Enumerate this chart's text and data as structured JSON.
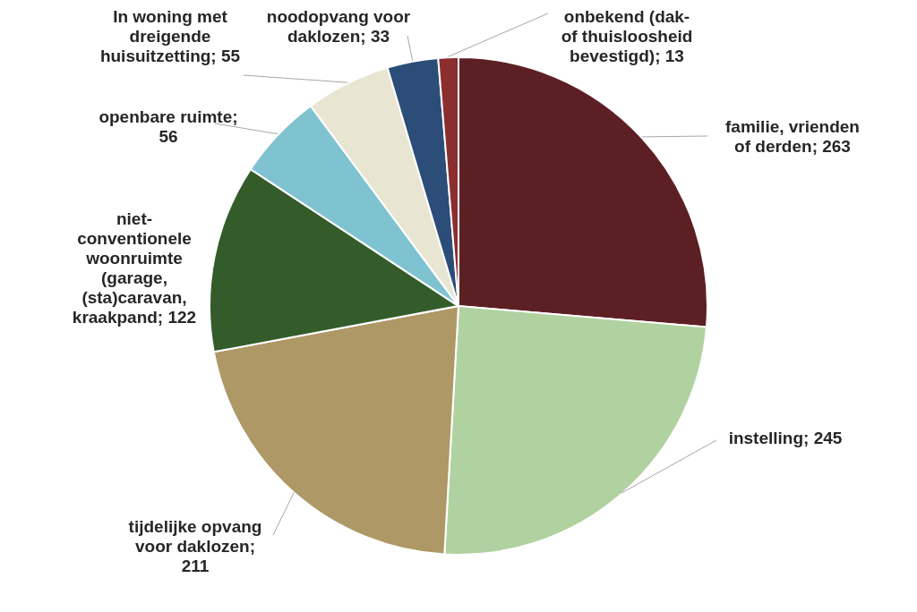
{
  "chart_data": {
    "type": "pie",
    "categories": [
      "familie, vrienden of derden",
      "instelling",
      "tijdelijke opvang voor daklozen",
      "niet-conventionele woonruimte (garage, (sta)caravan, kraakpand",
      "openbare ruimte",
      "In woning met dreigende huisuitzetting",
      "noodopvang voor daklozen",
      "onbekend (dak- of thuisloosheid bevestigd)"
    ],
    "values": [
      263,
      245,
      211,
      122,
      56,
      55,
      33,
      13
    ],
    "value_labels": [
      "; 263",
      "; 245",
      "; 211",
      "; 122",
      "; 56",
      "; 55",
      "; 33",
      "; 13"
    ],
    "colors": [
      "#5c2024",
      "#b0d2a0",
      "#ad9866",
      "#345c2a",
      "#80c3d0",
      "#e8e6d2",
      "#2c4d78",
      "#8b2e2e"
    ]
  }
}
